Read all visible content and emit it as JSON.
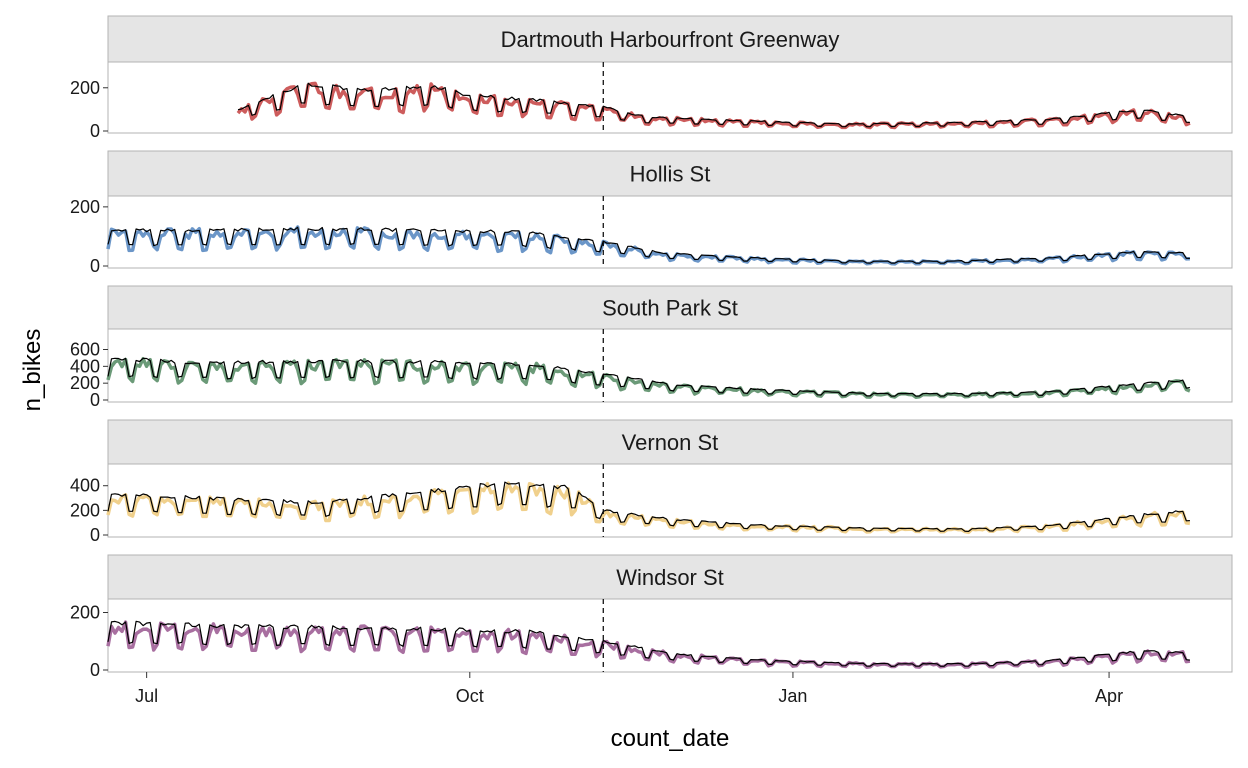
{
  "chart_data": {
    "type": "line",
    "xlabel": "count_date",
    "ylabel": "n_bikes",
    "x_range": [
      "2021-06-20",
      "2022-05-06"
    ],
    "x_ticks": [
      {
        "date": "2021-07-01",
        "label": "Jul"
      },
      {
        "date": "2021-10-01",
        "label": "Oct"
      },
      {
        "date": "2022-01-01",
        "label": "Jan"
      },
      {
        "date": "2022-04-01",
        "label": "Apr"
      }
    ],
    "reference_line": {
      "date": "2021-11-08",
      "style": "dashed"
    },
    "fitted_line_color": "#000000",
    "facets": [
      {
        "name": "Dartmouth Harbourfront Greenway",
        "color": "#cd5c5c",
        "ylim": [
          0,
          310
        ],
        "y_ticks": [
          0,
          200
        ],
        "start": "2021-07-27",
        "end": "2022-04-24",
        "anchors": [
          [
            "2021-07-27",
            90
          ],
          [
            "2021-08-15",
            200
          ],
          [
            "2021-09-01",
            170
          ],
          [
            "2021-09-20",
            190
          ],
          [
            "2021-10-01",
            150
          ],
          [
            "2021-10-20",
            130
          ],
          [
            "2021-11-08",
            100
          ],
          [
            "2021-11-20",
            60
          ],
          [
            "2021-12-15",
            45
          ],
          [
            "2022-01-15",
            30
          ],
          [
            "2022-02-15",
            35
          ],
          [
            "2022-03-15",
            50
          ],
          [
            "2022-04-10",
            90
          ],
          [
            "2022-04-24",
            60
          ]
        ]
      },
      {
        "name": "Hollis St",
        "color": "#6b96c8",
        "ylim": [
          0,
          230
        ],
        "y_ticks": [
          0,
          200
        ],
        "start": "2021-06-20",
        "end": "2022-04-24",
        "anchors": [
          [
            "2021-06-20",
            110
          ],
          [
            "2021-07-15",
            110
          ],
          [
            "2021-08-15",
            115
          ],
          [
            "2021-09-15",
            110
          ],
          [
            "2021-10-15",
            105
          ],
          [
            "2021-11-08",
            75
          ],
          [
            "2021-11-25",
            40
          ],
          [
            "2021-12-20",
            25
          ],
          [
            "2022-01-20",
            15
          ],
          [
            "2022-02-15",
            15
          ],
          [
            "2022-03-15",
            25
          ],
          [
            "2022-04-10",
            45
          ],
          [
            "2022-04-24",
            40
          ]
        ]
      },
      {
        "name": "South Park St",
        "color": "#6b9a78",
        "ylim": [
          0,
          820
        ],
        "y_ticks": [
          0,
          200,
          400,
          600
        ],
        "start": "2021-06-20",
        "end": "2022-04-24",
        "anchors": [
          [
            "2021-06-20",
            450
          ],
          [
            "2021-07-20",
            400
          ],
          [
            "2021-08-20",
            420
          ],
          [
            "2021-09-20",
            410
          ],
          [
            "2021-10-20",
            380
          ],
          [
            "2021-11-08",
            280
          ],
          [
            "2021-11-30",
            160
          ],
          [
            "2021-12-25",
            110
          ],
          [
            "2022-01-25",
            70
          ],
          [
            "2022-02-20",
            70
          ],
          [
            "2022-03-15",
            90
          ],
          [
            "2022-04-10",
            180
          ],
          [
            "2022-04-24",
            220
          ]
        ]
      },
      {
        "name": "Vernon St",
        "color": "#f0d08c",
        "ylim": [
          0,
          560
        ],
        "y_ticks": [
          0,
          200,
          400
        ],
        "start": "2021-06-20",
        "end": "2022-04-24",
        "anchors": [
          [
            "2021-06-20",
            300
          ],
          [
            "2021-07-20",
            270
          ],
          [
            "2021-08-20",
            240
          ],
          [
            "2021-09-10",
            300
          ],
          [
            "2021-10-10",
            380
          ],
          [
            "2021-10-30",
            350
          ],
          [
            "2021-11-08",
            180
          ],
          [
            "2021-11-30",
            110
          ],
          [
            "2021-12-25",
            70
          ],
          [
            "2022-01-25",
            50
          ],
          [
            "2022-02-20",
            45
          ],
          [
            "2022-03-15",
            70
          ],
          [
            "2022-04-10",
            150
          ],
          [
            "2022-04-24",
            180
          ]
        ]
      },
      {
        "name": "Windsor St",
        "color": "#a86fa0",
        "ylim": [
          0,
          240
        ],
        "y_ticks": [
          0,
          200
        ],
        "start": "2021-06-20",
        "end": "2022-04-24",
        "anchors": [
          [
            "2021-06-20",
            150
          ],
          [
            "2021-07-20",
            140
          ],
          [
            "2021-08-20",
            135
          ],
          [
            "2021-09-20",
            130
          ],
          [
            "2021-10-20",
            120
          ],
          [
            "2021-11-08",
            90
          ],
          [
            "2021-11-30",
            50
          ],
          [
            "2021-12-25",
            30
          ],
          [
            "2022-01-25",
            20
          ],
          [
            "2022-02-20",
            20
          ],
          [
            "2022-03-15",
            30
          ],
          [
            "2022-04-10",
            60
          ],
          [
            "2022-04-24",
            55
          ]
        ]
      }
    ]
  }
}
